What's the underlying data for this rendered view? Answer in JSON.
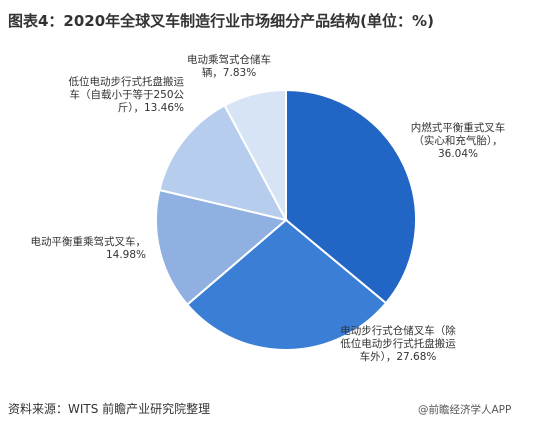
{
  "page_title": "图表4：2020年全球叉车制造行业市场细分产品结构(单位：%)",
  "source": "资料来源：WITS 前瞻产业研究院整理",
  "watermark": "@前瞻经济学人APP",
  "chart_data": {
    "type": "pie",
    "title": "图表4：2020年全球叉车制造行业市场细分产品结构(单位：%)",
    "start_angle_deg": 0,
    "direction": "clockwise",
    "slices": [
      {
        "label": "内燃式平衡重式叉车（实心和充气胎）",
        "value": 36.04,
        "display": "内燃式平衡重式叉车（实心和充气胎），36.04%",
        "color": "#2166c4"
      },
      {
        "label": "电动步行式仓储叉车（除低位电动步行式托盘搬运车外）",
        "value": 27.68,
        "display": "电动步行式仓储叉车（除低位电动步行式托盘搬运车外），27.68%",
        "color": "#3a7ed6"
      },
      {
        "label": "电动平衡重乘驾式叉车",
        "value": 14.98,
        "display": "电动平衡重乘驾式叉车，14.98%",
        "color": "#8fb0e0"
      },
      {
        "label": "低位电动步行式托盘搬运车（自载小于等于250公斤）",
        "value": 13.46,
        "display": "低位电动步行式托盘搬运车（自载小于等于250公斤），13.46%",
        "color": "#b6cdee"
      },
      {
        "label": "电动乘驾式仓储车辆",
        "value": 7.83,
        "display": "电动乘驾式仓储车辆，7.83%",
        "color": "#d7e4f5"
      }
    ]
  }
}
